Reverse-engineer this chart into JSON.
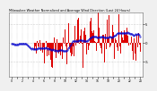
{
  "title": "Milwaukee Weather Normalized and Average Wind Direction (Last 24 Hours)",
  "background_color": "#f0f0f0",
  "plot_bg_color": "#ffffff",
  "grid_color": "#aaaaaa",
  "bar_color": "#dd0000",
  "line_color": "#0000cc",
  "n_points": 144,
  "y_ticks": [
    -5,
    0,
    5
  ],
  "ylim": [
    -9,
    8
  ],
  "xlim": [
    -0.5,
    24.5
  ],
  "seed": 7
}
